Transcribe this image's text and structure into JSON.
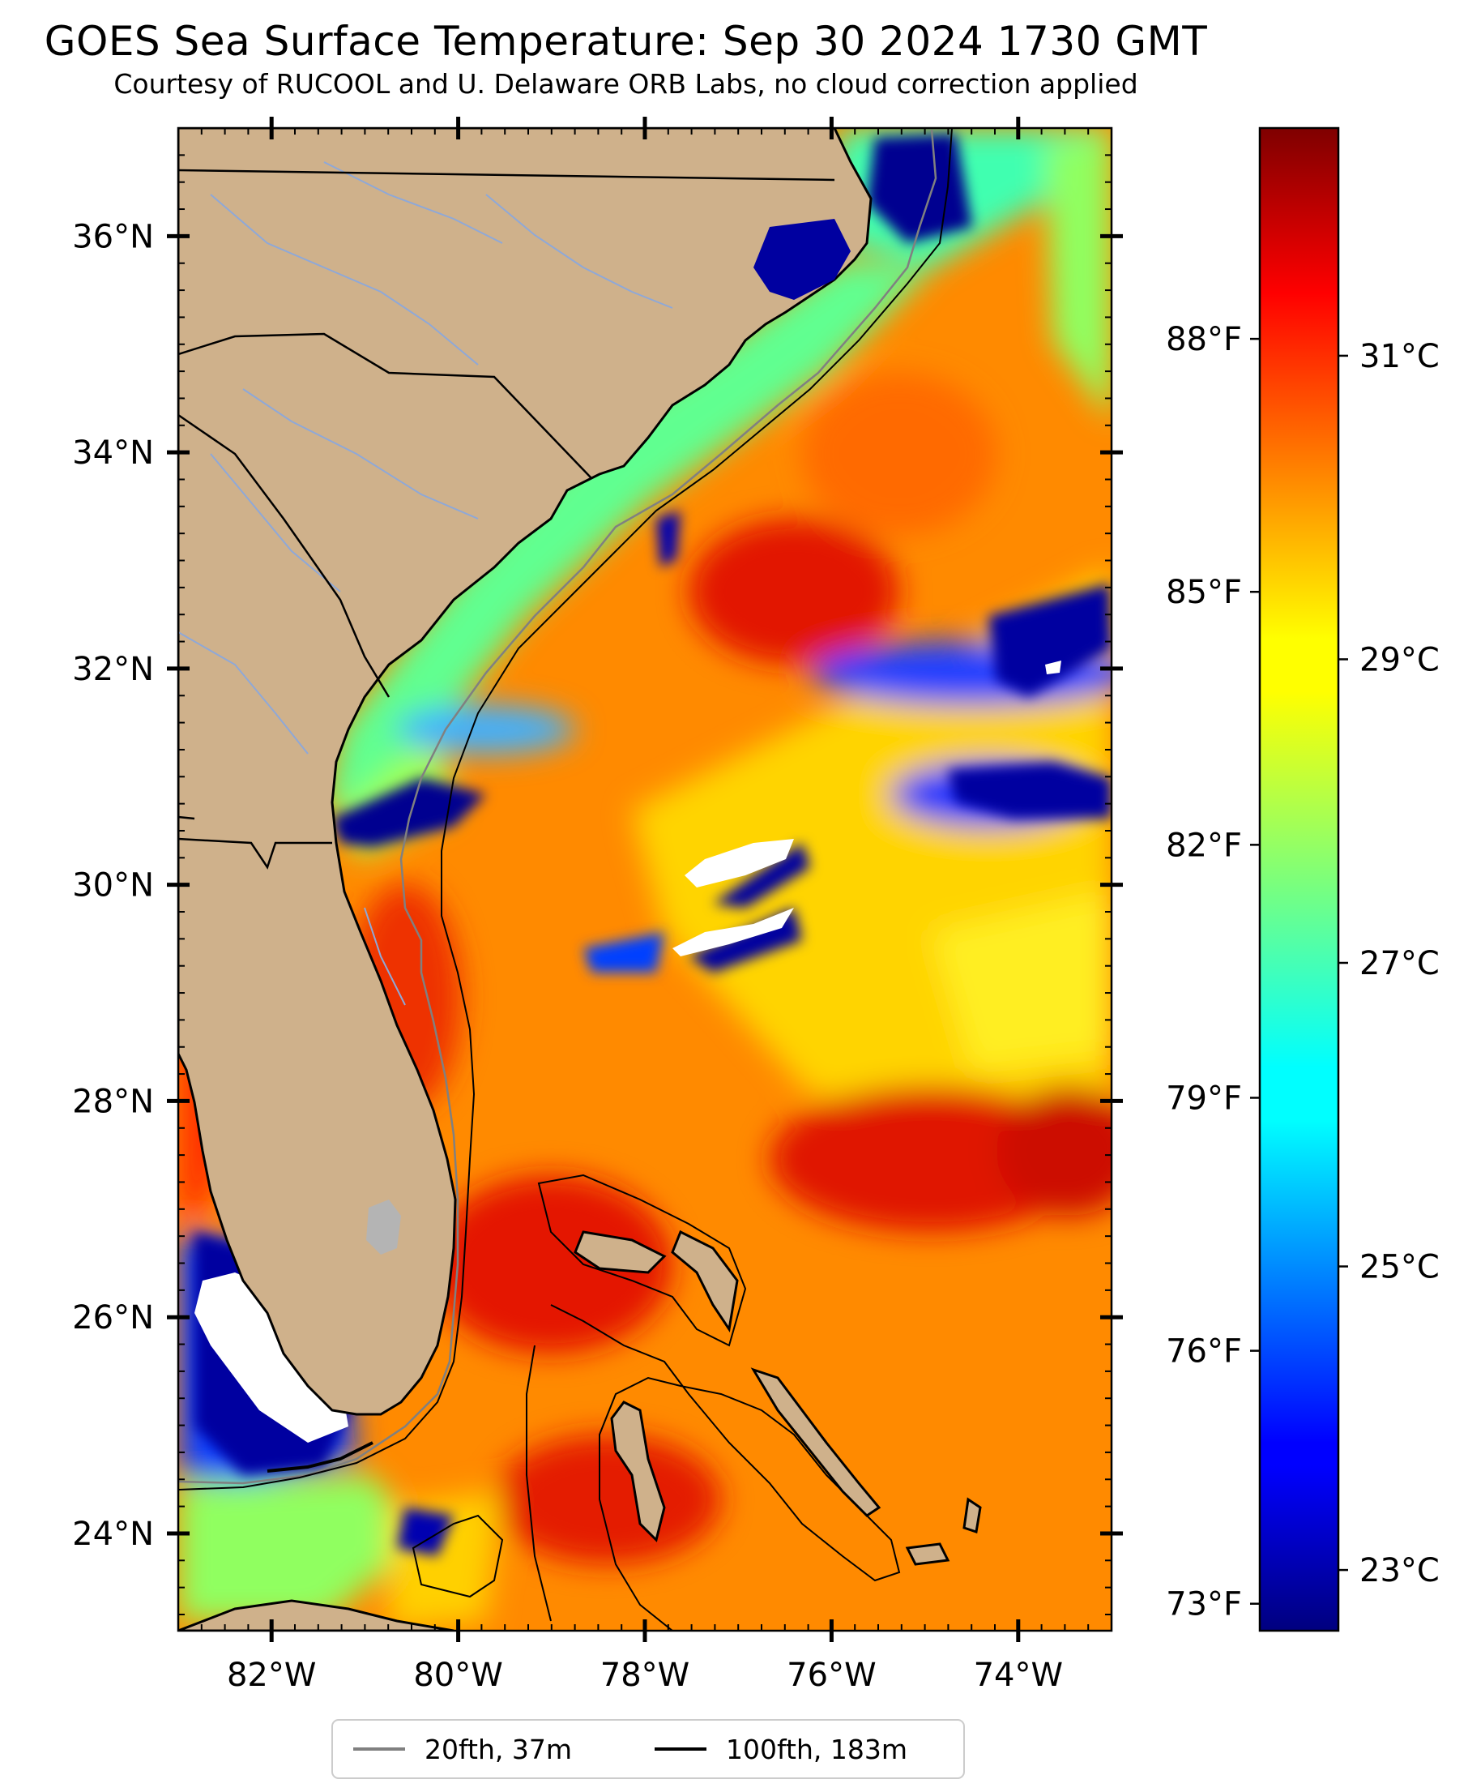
{
  "title": "GOES Sea Surface Temperature: Sep 30 2024 1730 GMT",
  "subtitle": "Courtesy of RUCOOL and U. Delaware ORB Labs, no cloud correction applied",
  "map": {
    "lon_range": [
      -83.0,
      -73.0
    ],
    "lat_range": [
      23.1,
      37.0
    ],
    "lon_ticks": [
      {
        "value": -82,
        "label": "82°W"
      },
      {
        "value": -80,
        "label": "80°W"
      },
      {
        "value": -78,
        "label": "78°W"
      },
      {
        "value": -76,
        "label": "76°W"
      },
      {
        "value": -74,
        "label": "74°W"
      }
    ],
    "lat_ticks": [
      {
        "value": 24,
        "label": "24°N"
      },
      {
        "value": 26,
        "label": "26°N"
      },
      {
        "value": 28,
        "label": "28°N"
      },
      {
        "value": 30,
        "label": "30°N"
      },
      {
        "value": 32,
        "label": "32°N"
      },
      {
        "value": 34,
        "label": "34°N"
      },
      {
        "value": 36,
        "label": "36°N"
      }
    ],
    "land_color": "#cfb18b",
    "cloud_color": "#ffffff"
  },
  "colorbar": {
    "colormap": "jet",
    "range_c": [
      22.6,
      32.5
    ],
    "celsius_ticks": [
      {
        "value": 23,
        "label": "23°C"
      },
      {
        "value": 25,
        "label": "25°C"
      },
      {
        "value": 27,
        "label": "27°C"
      },
      {
        "value": 29,
        "label": "29°C"
      },
      {
        "value": 31,
        "label": "31°C"
      }
    ],
    "fahrenheit_ticks": [
      {
        "value": 73,
        "label": "73°F"
      },
      {
        "value": 76,
        "label": "76°F"
      },
      {
        "value": 79,
        "label": "79°F"
      },
      {
        "value": 82,
        "label": "82°F"
      },
      {
        "value": 85,
        "label": "85°F"
      },
      {
        "value": 88,
        "label": "88°F"
      }
    ]
  },
  "legend": {
    "items": [
      {
        "label": "20fth, 37m",
        "color": "#808080"
      },
      {
        "label": "100fth, 183m",
        "color": "#000000"
      }
    ]
  }
}
